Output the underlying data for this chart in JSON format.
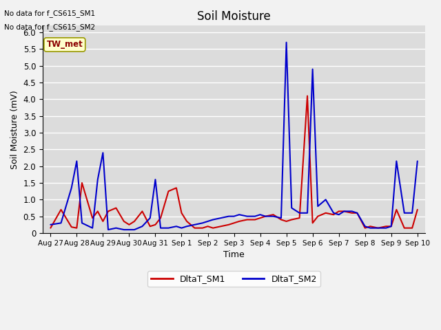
{
  "title": "Soil Moisture",
  "xlabel": "Time",
  "ylabel": "Soil Moisture (mV)",
  "ylim": [
    0.0,
    6.2
  ],
  "yticks": [
    0.0,
    0.5,
    1.0,
    1.5,
    2.0,
    2.5,
    3.0,
    3.5,
    4.0,
    4.5,
    5.0,
    5.5,
    6.0
  ],
  "background_color": "#dcdcdc",
  "fig_background": "#f2f2f2",
  "text_annotations": [
    "No data for f_CS615_SM1",
    "No data for f_CS615_SM2"
  ],
  "station_label": "TW_met",
  "x_tick_labels": [
    "Aug 27",
    "Aug 28",
    "Aug 29",
    "Aug 30",
    "Aug 31",
    "Sep 1",
    "Sep 2",
    "Sep 3",
    "Sep 4",
    "Sep 5",
    "Sep 6",
    "Sep 7",
    "Sep 8",
    "Sep 9",
    "Sep 10"
  ],
  "sm1_color": "#cc0000",
  "sm2_color": "#0000cc",
  "sm1_label": "DltaT_SM1",
  "sm2_label": "DltaT_SM2",
  "sm1_x": [
    0,
    0.4,
    0.8,
    1.0,
    1.2,
    1.6,
    1.8,
    2.0,
    2.2,
    2.5,
    2.8,
    3.0,
    3.2,
    3.5,
    3.8,
    4.0,
    4.2,
    4.5,
    4.8,
    5.0,
    5.2,
    5.5,
    5.8,
    6.0,
    6.2,
    6.5,
    6.8,
    7.0,
    7.2,
    7.5,
    7.8,
    8.0,
    8.2,
    8.5,
    8.8,
    9.0,
    9.2,
    9.5,
    9.8,
    10.0,
    10.2,
    10.5,
    10.8,
    11.0,
    11.2,
    11.5,
    11.7,
    12.0,
    12.2,
    12.5,
    12.8,
    13.0,
    13.2,
    13.5,
    13.8,
    14.0
  ],
  "sm1_y": [
    0.15,
    0.7,
    0.18,
    0.15,
    1.5,
    0.45,
    0.65,
    0.35,
    0.65,
    0.75,
    0.35,
    0.25,
    0.35,
    0.65,
    0.2,
    0.25,
    0.45,
    1.25,
    1.35,
    0.6,
    0.35,
    0.15,
    0.15,
    0.2,
    0.15,
    0.2,
    0.25,
    0.3,
    0.35,
    0.4,
    0.4,
    0.45,
    0.5,
    0.55,
    0.4,
    0.35,
    0.4,
    0.45,
    4.1,
    0.3,
    0.5,
    0.6,
    0.55,
    0.65,
    0.65,
    0.6,
    0.6,
    0.15,
    0.2,
    0.15,
    0.2,
    0.2,
    0.7,
    0.15,
    0.15,
    0.7
  ],
  "sm2_x": [
    0,
    0.4,
    0.8,
    1.0,
    1.2,
    1.6,
    1.8,
    2.0,
    2.2,
    2.5,
    2.8,
    3.0,
    3.2,
    3.5,
    3.8,
    4.0,
    4.2,
    4.5,
    4.8,
    5.0,
    5.2,
    5.5,
    5.8,
    6.0,
    6.2,
    6.5,
    6.8,
    7.0,
    7.2,
    7.5,
    7.8,
    8.0,
    8.2,
    8.5,
    8.8,
    9.0,
    9.2,
    9.5,
    9.8,
    10.0,
    10.2,
    10.5,
    10.8,
    11.0,
    11.2,
    11.5,
    11.7,
    12.0,
    12.2,
    12.5,
    12.8,
    13.0,
    13.2,
    13.5,
    13.8,
    14.0
  ],
  "sm2_y": [
    0.25,
    0.3,
    1.35,
    2.15,
    0.3,
    0.15,
    1.6,
    2.4,
    0.1,
    0.15,
    0.1,
    0.1,
    0.1,
    0.2,
    0.45,
    1.6,
    0.15,
    0.15,
    0.2,
    0.15,
    0.2,
    0.25,
    0.3,
    0.35,
    0.4,
    0.45,
    0.5,
    0.5,
    0.55,
    0.5,
    0.5,
    0.55,
    0.5,
    0.5,
    0.45,
    5.7,
    0.75,
    0.6,
    0.6,
    4.9,
    0.8,
    1.0,
    0.6,
    0.55,
    0.65,
    0.65,
    0.6,
    0.2,
    0.15,
    0.15,
    0.15,
    0.2,
    2.15,
    0.6,
    0.6,
    2.15
  ]
}
